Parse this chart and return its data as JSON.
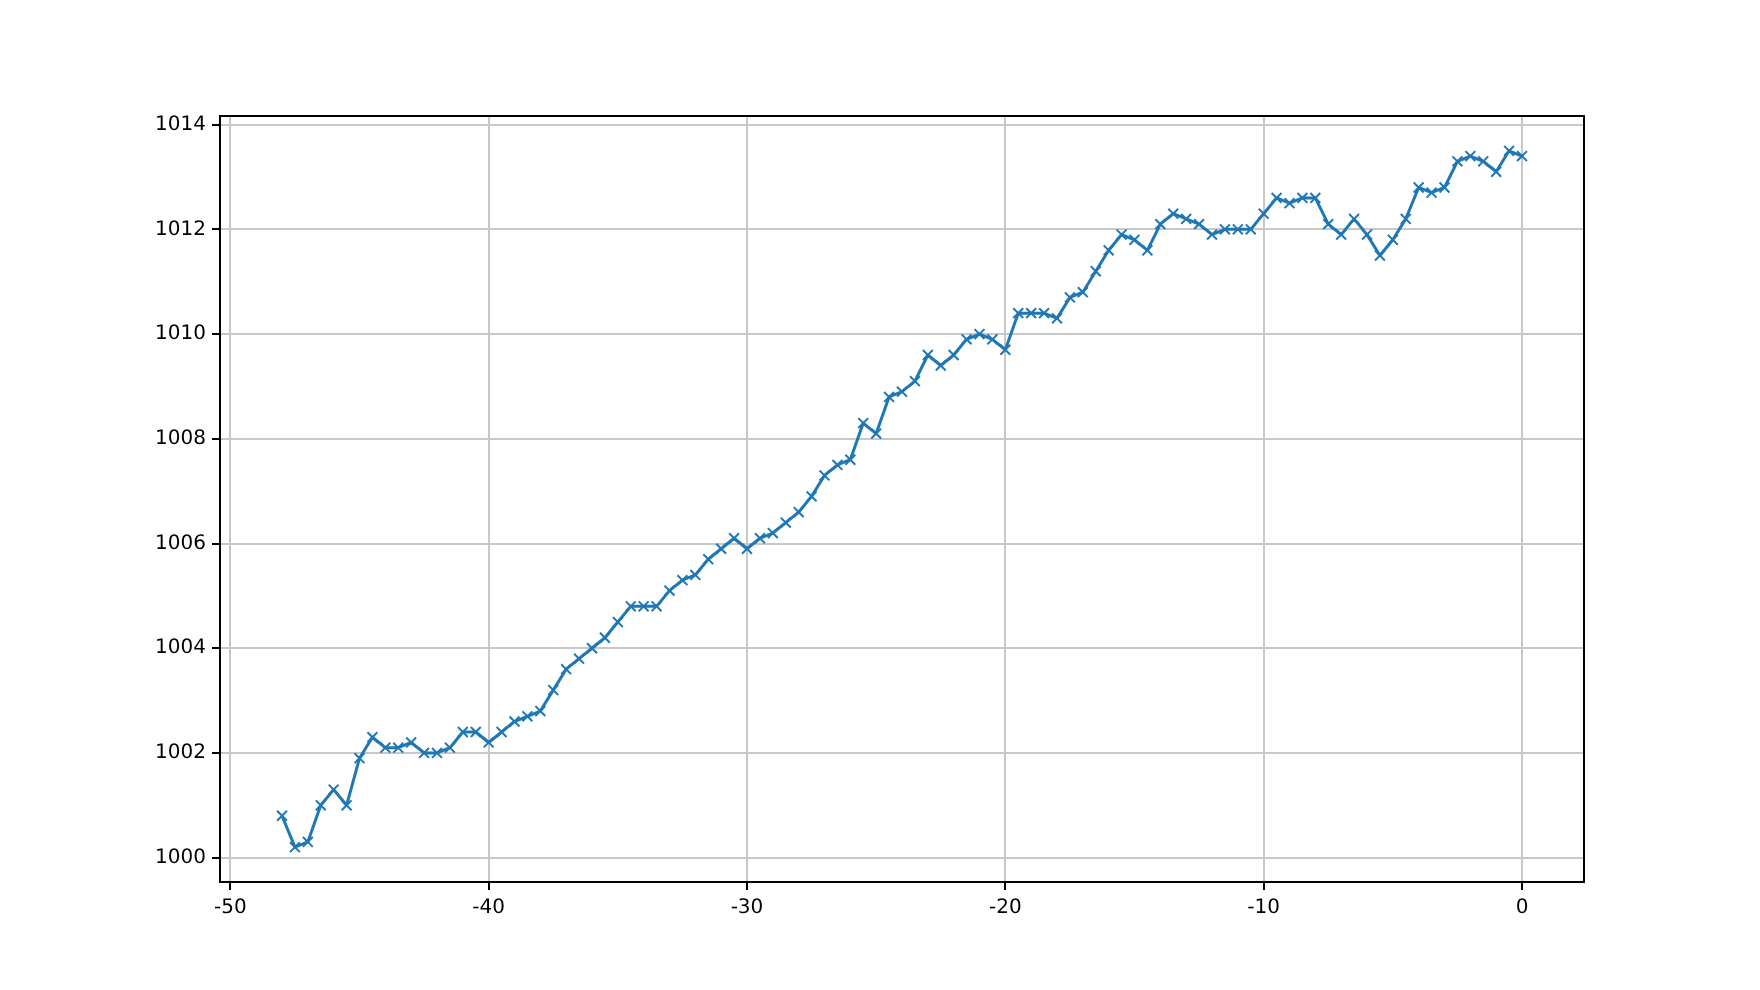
{
  "chart_data": {
    "type": "line",
    "x": [
      -48,
      -47.5,
      -47,
      -46.5,
      -46,
      -45.5,
      -45,
      -44.5,
      -44,
      -43.5,
      -43,
      -42.5,
      -42,
      -41.5,
      -41,
      -40.5,
      -40,
      -39.5,
      -39,
      -38.5,
      -38,
      -37.5,
      -37,
      -36.5,
      -36,
      -35.5,
      -35,
      -34.5,
      -34,
      -33.5,
      -33,
      -32.5,
      -32,
      -31.5,
      -31,
      -30.5,
      -30,
      -29.5,
      -29,
      -28.5,
      -28,
      -27.5,
      -27,
      -26.5,
      -26,
      -25.5,
      -25,
      -24.5,
      -24,
      -23.5,
      -23,
      -22.5,
      -22,
      -21.5,
      -21,
      -20.5,
      -20,
      -19.5,
      -19,
      -18.5,
      -18,
      -17.5,
      -17,
      -16.5,
      -16,
      -15.5,
      -15,
      -14.5,
      -14,
      -13.5,
      -13,
      -12.5,
      -12,
      -11.5,
      -11,
      -10.5,
      -10,
      -9.5,
      -9,
      -8.5,
      -8,
      -7.5,
      -7,
      -6.5,
      -6,
      -5.5,
      -5,
      -4.5,
      -4,
      -3.5,
      -3,
      -2.5,
      -2,
      -1.5,
      -1,
      -0.5,
      0
    ],
    "series": [
      {
        "color": "#1f77b4",
        "values": [
          1000.8,
          1000.2,
          1000.3,
          1001.0,
          1001.3,
          1001.0,
          1001.9,
          1002.3,
          1002.1,
          1002.1,
          1002.2,
          1002.0,
          1002.0,
          1002.1,
          1002.4,
          1002.4,
          1002.2,
          1002.4,
          1002.6,
          1002.7,
          1002.8,
          1003.2,
          1003.6,
          1003.8,
          1004.0,
          1004.2,
          1004.5,
          1004.8,
          1004.8,
          1004.8,
          1005.1,
          1005.3,
          1005.4,
          1005.7,
          1005.9,
          1006.1,
          1005.9,
          1006.1,
          1006.2,
          1006.4,
          1006.6,
          1006.9,
          1007.3,
          1007.5,
          1007.6,
          1008.3,
          1008.1,
          1008.8,
          1008.9,
          1009.1,
          1009.6,
          1009.4,
          1009.6,
          1009.9,
          1010.0,
          1009.9,
          1009.7,
          1010.4,
          1010.4,
          1010.4,
          1010.3,
          1010.7,
          1010.8,
          1011.2,
          1011.6,
          1011.9,
          1011.8,
          1011.6,
          1012.1,
          1012.3,
          1012.2,
          1012.1,
          1011.9,
          1012.0,
          1012.0,
          1012.0,
          1012.3,
          1012.6,
          1012.5,
          1012.6,
          1012.6,
          1012.1,
          1011.9,
          1012.2,
          1011.9,
          1011.5,
          1011.8,
          1012.2,
          1012.8,
          1012.7,
          1012.8,
          1013.3,
          1013.4,
          1013.3,
          1013.1,
          1013.5,
          1013.4
        ]
      }
    ],
    "xlim": [
      -50.4,
      2.4
    ],
    "ylim": [
      999.535,
      1014.165
    ],
    "xticks": [
      -50,
      -40,
      -30,
      -20,
      -10,
      0
    ],
    "yticks": [
      1000,
      1002,
      1004,
      1006,
      1008,
      1010,
      1012,
      1014
    ],
    "grid": true,
    "marker": "cross",
    "line_style": "solid"
  }
}
